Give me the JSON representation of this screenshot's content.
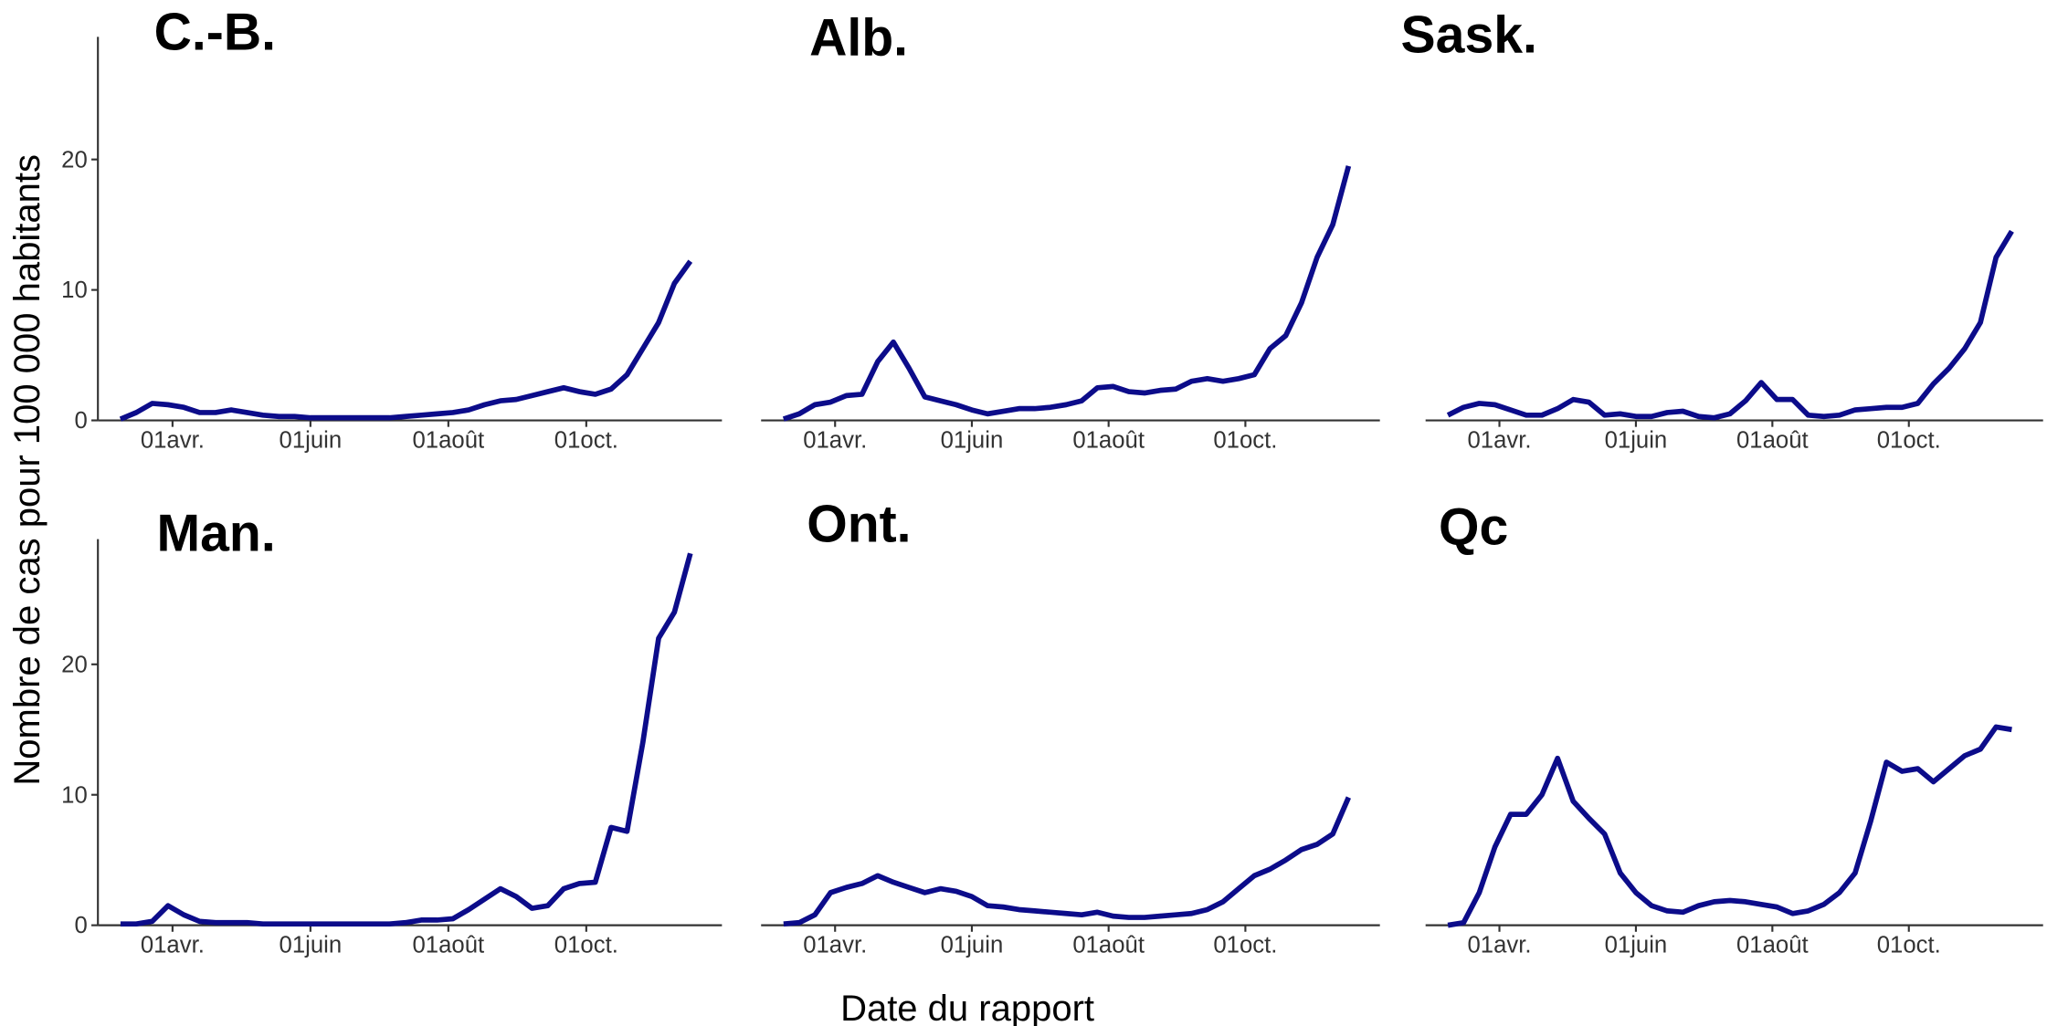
{
  "y_label": "Nombre de cas pour 100 000 habitants",
  "x_label": "Date du rapport",
  "chart_data": [
    {
      "type": "line",
      "title": "C.-B.",
      "color": "#0c0c8a",
      "x": [
        68,
        75,
        82,
        89,
        96,
        103,
        110,
        117,
        124,
        131,
        138,
        145,
        152,
        159,
        166,
        173,
        180,
        187,
        194,
        201,
        208,
        215,
        222,
        229,
        236,
        243,
        250,
        257,
        264,
        271,
        278,
        285,
        292,
        299,
        306,
        313,
        320
      ],
      "values": [
        0.1,
        0.6,
        1.3,
        1.2,
        1.0,
        0.6,
        0.6,
        0.8,
        0.6,
        0.4,
        0.3,
        0.3,
        0.2,
        0.2,
        0.2,
        0.2,
        0.2,
        0.2,
        0.3,
        0.4,
        0.5,
        0.6,
        0.8,
        1.2,
        1.5,
        1.6,
        1.9,
        2.2,
        2.5,
        2.2,
        2.0,
        2.4,
        3.5,
        5.5,
        7.5,
        10.5,
        12.2
      ],
      "xlim": [
        58,
        334
      ],
      "xticks": [
        {
          "value": 91,
          "label": "01avr."
        },
        {
          "value": 152,
          "label": "01juin"
        },
        {
          "value": 213,
          "label": "01août"
        },
        {
          "value": 274,
          "label": "01oct."
        }
      ],
      "ylim": [
        0,
        29.4
      ],
      "yticks": [
        0,
        10,
        20
      ]
    },
    {
      "type": "line",
      "title": "Alb.",
      "color": "#0c0c8a",
      "x": [
        68,
        75,
        82,
        89,
        96,
        103,
        110,
        117,
        124,
        131,
        138,
        145,
        152,
        159,
        166,
        173,
        180,
        187,
        194,
        201,
        208,
        215,
        222,
        229,
        236,
        243,
        250,
        257,
        264,
        271,
        278,
        285,
        292,
        299,
        306,
        313,
        320
      ],
      "values": [
        0.1,
        0.5,
        1.2,
        1.4,
        1.9,
        2.0,
        4.5,
        6.0,
        4.0,
        1.8,
        1.5,
        1.2,
        0.8,
        0.5,
        0.7,
        0.9,
        0.9,
        1.0,
        1.2,
        1.5,
        2.5,
        2.6,
        2.2,
        2.1,
        2.3,
        2.4,
        3.0,
        3.2,
        3.0,
        3.2,
        3.5,
        5.5,
        6.5,
        9.0,
        12.5,
        15.0,
        19.5
      ],
      "xlim": [
        58,
        334
      ],
      "xticks": [
        {
          "value": 91,
          "label": "01avr."
        },
        {
          "value": 152,
          "label": "01juin"
        },
        {
          "value": 213,
          "label": "01août"
        },
        {
          "value": 274,
          "label": "01oct."
        }
      ],
      "ylim": [
        0,
        29.4
      ]
    },
    {
      "type": "line",
      "title": "Sask.",
      "color": "#0c0c8a",
      "x": [
        68,
        75,
        82,
        89,
        96,
        103,
        110,
        117,
        124,
        131,
        138,
        145,
        152,
        159,
        166,
        173,
        180,
        187,
        194,
        201,
        208,
        215,
        222,
        229,
        236,
        243,
        250,
        257,
        264,
        271,
        278,
        285,
        292,
        299,
        306,
        313,
        320
      ],
      "values": [
        0.4,
        1.0,
        1.3,
        1.2,
        0.8,
        0.4,
        0.4,
        0.9,
        1.6,
        1.4,
        0.4,
        0.5,
        0.3,
        0.3,
        0.6,
        0.7,
        0.3,
        0.2,
        0.5,
        1.5,
        2.9,
        1.6,
        1.6,
        0.4,
        0.3,
        0.4,
        0.8,
        0.9,
        1.0,
        1.0,
        1.3,
        2.8,
        4.0,
        5.5,
        7.5,
        12.5,
        14.5
      ],
      "xlim": [
        58,
        334
      ],
      "xticks": [
        {
          "value": 91,
          "label": "01avr."
        },
        {
          "value": 152,
          "label": "01juin"
        },
        {
          "value": 213,
          "label": "01août"
        },
        {
          "value": 274,
          "label": "01oct."
        }
      ],
      "ylim": [
        0,
        29.4
      ]
    },
    {
      "type": "line",
      "title": "Man.",
      "color": "#0c0c8a",
      "x": [
        68,
        75,
        82,
        89,
        96,
        103,
        110,
        117,
        124,
        131,
        138,
        145,
        152,
        159,
        166,
        173,
        180,
        187,
        194,
        201,
        208,
        215,
        222,
        229,
        236,
        243,
        250,
        257,
        264,
        271,
        278,
        285,
        292,
        299,
        306,
        313,
        320
      ],
      "values": [
        0.1,
        0.1,
        0.3,
        1.5,
        0.8,
        0.3,
        0.2,
        0.2,
        0.2,
        0.1,
        0.1,
        0.1,
        0.1,
        0.1,
        0.1,
        0.1,
        0.1,
        0.1,
        0.2,
        0.4,
        0.4,
        0.5,
        1.2,
        2.0,
        2.8,
        2.2,
        1.3,
        1.5,
        2.8,
        3.2,
        3.3,
        7.5,
        7.2,
        14.0,
        22.0,
        24.0,
        28.5
      ],
      "xlim": [
        58,
        334
      ],
      "xticks": [
        {
          "value": 91,
          "label": "01avr."
        },
        {
          "value": 152,
          "label": "01juin"
        },
        {
          "value": 213,
          "label": "01août"
        },
        {
          "value": 274,
          "label": "01oct."
        }
      ],
      "ylim": [
        0,
        29.6
      ],
      "yticks": [
        0,
        10,
        20
      ]
    },
    {
      "type": "line",
      "title": "Ont.",
      "color": "#0c0c8a",
      "x": [
        68,
        75,
        82,
        89,
        96,
        103,
        110,
        117,
        124,
        131,
        138,
        145,
        152,
        159,
        166,
        173,
        180,
        187,
        194,
        201,
        208,
        215,
        222,
        229,
        236,
        243,
        250,
        257,
        264,
        271,
        278,
        285,
        292,
        299,
        306,
        313,
        320
      ],
      "values": [
        0.1,
        0.2,
        0.8,
        2.5,
        2.9,
        3.2,
        3.8,
        3.3,
        2.9,
        2.5,
        2.8,
        2.6,
        2.2,
        1.5,
        1.4,
        1.2,
        1.1,
        1.0,
        0.9,
        0.8,
        1.0,
        0.7,
        0.6,
        0.6,
        0.7,
        0.8,
        0.9,
        1.2,
        1.8,
        2.8,
        3.8,
        4.3,
        5.0,
        5.8,
        6.2,
        7.0,
        9.8
      ],
      "xlim": [
        58,
        334
      ],
      "xticks": [
        {
          "value": 91,
          "label": "01avr."
        },
        {
          "value": 152,
          "label": "01juin"
        },
        {
          "value": 213,
          "label": "01août"
        },
        {
          "value": 274,
          "label": "01oct."
        }
      ],
      "ylim": [
        0,
        29.6
      ]
    },
    {
      "type": "line",
      "title": "Qc",
      "color": "#0c0c8a",
      "x": [
        68,
        75,
        82,
        89,
        96,
        103,
        110,
        117,
        124,
        131,
        138,
        145,
        152,
        159,
        166,
        173,
        180,
        187,
        194,
        201,
        208,
        215,
        222,
        229,
        236,
        243,
        250,
        257,
        264,
        271,
        278,
        285,
        292,
        299,
        306,
        313,
        320
      ],
      "values": [
        0,
        0.2,
        2.5,
        6.0,
        8.5,
        8.5,
        10.0,
        12.8,
        9.5,
        8.2,
        7.0,
        4.0,
        2.5,
        1.5,
        1.1,
        1.0,
        1.5,
        1.8,
        1.9,
        1.8,
        1.6,
        1.4,
        0.9,
        1.1,
        1.6,
        2.5,
        4.0,
        8.0,
        12.5,
        11.8,
        12.0,
        11.0,
        12.0,
        13.0,
        13.5,
        15.2,
        15.0
      ],
      "xlim": [
        58,
        334
      ],
      "xticks": [
        {
          "value": 91,
          "label": "01avr."
        },
        {
          "value": 152,
          "label": "01juin"
        },
        {
          "value": 213,
          "label": "01août"
        },
        {
          "value": 274,
          "label": "01oct."
        }
      ],
      "ylim": [
        0,
        29.6
      ]
    }
  ]
}
